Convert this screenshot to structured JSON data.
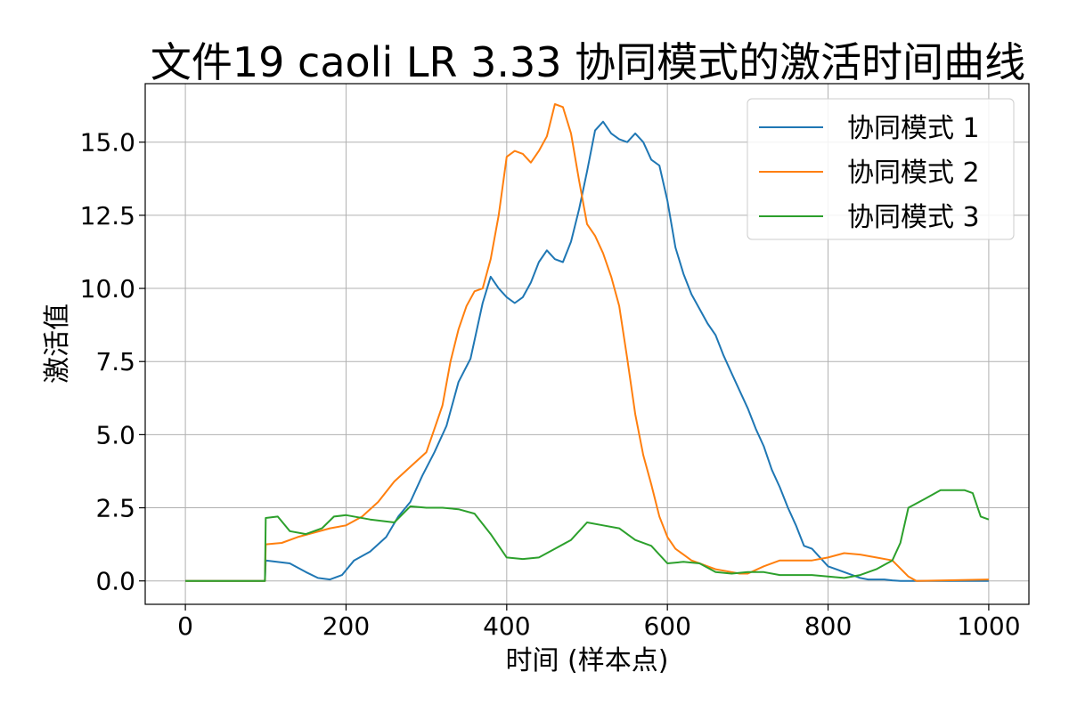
{
  "chart_data": {
    "type": "line",
    "title": "文件19 caoli LR 3.33 协同模式的激活时间曲线",
    "xlabel": "时间 (样本点)",
    "ylabel": "激活值",
    "xlim": [
      -50,
      1050
    ],
    "ylim": [
      -0.8,
      17.0
    ],
    "xticks": [
      0,
      200,
      400,
      600,
      800,
      1000
    ],
    "xtick_labels": [
      "0",
      "200",
      "400",
      "600",
      "800",
      "1000"
    ],
    "yticks": [
      0.0,
      2.5,
      5.0,
      7.5,
      10.0,
      12.5,
      15.0
    ],
    "ytick_labels": [
      "0.0",
      "2.5",
      "5.0",
      "7.5",
      "10.0",
      "12.5",
      "15.0"
    ],
    "grid": true,
    "legend_position": "top-right",
    "series": [
      {
        "name": "协同模式 1",
        "color": "#1f77b4",
        "x": [
          0,
          99,
          100,
          130,
          150,
          165,
          180,
          195,
          210,
          230,
          250,
          265,
          280,
          295,
          310,
          325,
          340,
          355,
          370,
          380,
          390,
          400,
          410,
          420,
          430,
          440,
          450,
          460,
          470,
          480,
          490,
          500,
          510,
          520,
          530,
          540,
          550,
          560,
          570,
          580,
          590,
          600,
          610,
          620,
          630,
          640,
          650,
          660,
          670,
          680,
          690,
          700,
          710,
          720,
          730,
          740,
          750,
          760,
          770,
          780,
          790,
          800,
          810,
          820,
          830,
          840,
          850,
          860,
          870,
          880,
          890,
          900,
          1000
        ],
        "y": [
          0,
          0,
          0.7,
          0.6,
          0.3,
          0.1,
          0.05,
          0.2,
          0.7,
          1.0,
          1.5,
          2.2,
          2.7,
          3.6,
          4.4,
          5.3,
          6.8,
          7.6,
          9.5,
          10.4,
          10.0,
          9.7,
          9.5,
          9.7,
          10.2,
          10.9,
          11.3,
          11.0,
          10.9,
          11.6,
          12.7,
          14.0,
          15.4,
          15.7,
          15.3,
          15.1,
          15.0,
          15.3,
          15.0,
          14.4,
          14.2,
          13.0,
          11.4,
          10.5,
          9.8,
          9.3,
          8.8,
          8.4,
          7.7,
          7.1,
          6.5,
          5.9,
          5.2,
          4.6,
          3.8,
          3.2,
          2.5,
          1.9,
          1.2,
          1.1,
          0.8,
          0.5,
          0.4,
          0.3,
          0.2,
          0.1,
          0.05,
          0.05,
          0.05,
          0.02,
          0.0,
          0.0,
          0.0
        ]
      },
      {
        "name": "协同模式 2",
        "color": "#ff7f0e",
        "x": [
          0,
          99,
          100,
          120,
          140,
          160,
          180,
          200,
          220,
          240,
          260,
          280,
          300,
          310,
          320,
          330,
          340,
          350,
          360,
          370,
          380,
          390,
          400,
          410,
          420,
          430,
          440,
          450,
          460,
          470,
          480,
          490,
          500,
          510,
          520,
          530,
          540,
          550,
          560,
          570,
          580,
          590,
          600,
          610,
          620,
          630,
          640,
          650,
          660,
          670,
          680,
          690,
          700,
          720,
          740,
          760,
          780,
          800,
          820,
          840,
          860,
          880,
          900,
          910,
          1000
        ],
        "y": [
          0,
          0,
          1.25,
          1.3,
          1.5,
          1.65,
          1.8,
          1.9,
          2.2,
          2.7,
          3.4,
          3.9,
          4.4,
          5.2,
          6.0,
          7.5,
          8.6,
          9.4,
          9.9,
          10.0,
          11.0,
          12.5,
          14.5,
          14.7,
          14.6,
          14.3,
          14.7,
          15.2,
          16.3,
          16.2,
          15.3,
          13.7,
          12.2,
          11.8,
          11.2,
          10.4,
          9.4,
          7.6,
          5.7,
          4.3,
          3.3,
          2.2,
          1.5,
          1.1,
          0.9,
          0.7,
          0.6,
          0.5,
          0.4,
          0.35,
          0.3,
          0.25,
          0.25,
          0.5,
          0.7,
          0.7,
          0.7,
          0.8,
          0.95,
          0.9,
          0.8,
          0.7,
          0.15,
          0.0,
          0.05
        ]
      },
      {
        "name": "协同模式 3",
        "color": "#2ca02c",
        "x": [
          0,
          99,
          100,
          115,
          130,
          150,
          170,
          185,
          200,
          230,
          260,
          280,
          300,
          320,
          340,
          360,
          380,
          400,
          420,
          440,
          460,
          480,
          500,
          520,
          540,
          560,
          580,
          600,
          620,
          640,
          660,
          680,
          700,
          720,
          740,
          760,
          780,
          800,
          820,
          840,
          860,
          880,
          890,
          900,
          920,
          940,
          960,
          970,
          980,
          990,
          1000
        ],
        "y": [
          0,
          0,
          2.15,
          2.2,
          1.7,
          1.6,
          1.8,
          2.2,
          2.25,
          2.1,
          2.0,
          2.55,
          2.5,
          2.5,
          2.45,
          2.3,
          1.6,
          0.8,
          0.75,
          0.8,
          1.1,
          1.4,
          2.0,
          1.9,
          1.8,
          1.4,
          1.2,
          0.6,
          0.65,
          0.6,
          0.3,
          0.25,
          0.3,
          0.3,
          0.2,
          0.2,
          0.2,
          0.15,
          0.1,
          0.2,
          0.4,
          0.7,
          1.3,
          2.5,
          2.8,
          3.1,
          3.1,
          3.1,
          3.0,
          2.2,
          2.1
        ]
      }
    ]
  }
}
